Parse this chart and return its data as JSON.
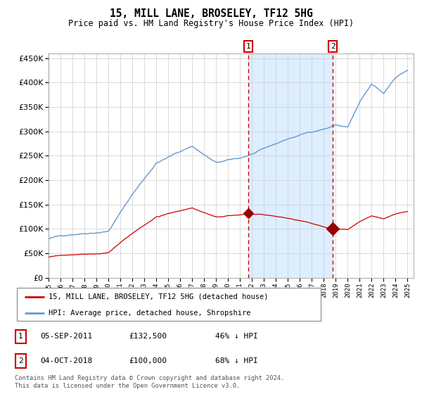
{
  "title": "15, MILL LANE, BROSELEY, TF12 5HG",
  "subtitle": "Price paid vs. HM Land Registry's House Price Index (HPI)",
  "legend_line1": "15, MILL LANE, BROSELEY, TF12 5HG (detached house)",
  "legend_line2": "HPI: Average price, detached house, Shropshire",
  "transaction1_date": "05-SEP-2011",
  "transaction1_price": 132500,
  "transaction1_pct": "46% ↓ HPI",
  "transaction2_date": "04-OCT-2018",
  "transaction2_price": 100000,
  "transaction2_pct": "68% ↓ HPI",
  "footer": "Contains HM Land Registry data © Crown copyright and database right 2024.\nThis data is licensed under the Open Government Licence v3.0.",
  "hpi_color": "#6699cc",
  "price_color": "#cc0000",
  "vline_color": "#cc0000",
  "shade_color": "#ddeeff",
  "marker_color": "#990000",
  "ylim_min": 0,
  "ylim_max": 460000,
  "transaction1_year": 2011.67,
  "transaction2_year": 2018.75
}
